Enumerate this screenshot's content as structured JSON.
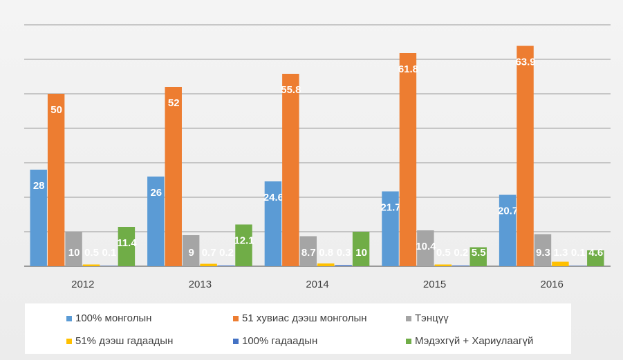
{
  "chart_data": {
    "type": "bar",
    "categories": [
      "2012",
      "2013",
      "2014",
      "2015",
      "2016"
    ],
    "series": [
      {
        "name": "100% монголын",
        "color": "#5b9bd5",
        "values": [
          28,
          26,
          24.6,
          21.7,
          20.7
        ]
      },
      {
        "name": "51 хувиас дээш монголын",
        "color": "#ed7d31",
        "values": [
          50,
          52,
          55.8,
          61.8,
          63.9
        ]
      },
      {
        "name": "Тэнцүү",
        "color": "#a5a5a5",
        "values": [
          10,
          9,
          8.7,
          10.4,
          9.3
        ]
      },
      {
        "name": "51% дээш гадаадын",
        "color": "#ffc000",
        "values": [
          0.5,
          0.7,
          0.8,
          0.5,
          1.3
        ]
      },
      {
        "name": "100% гадаадын",
        "color": "#4472c4",
        "values": [
          0.1,
          0.2,
          0.3,
          0.2,
          0.1
        ]
      },
      {
        "name": "Мэдэхгүй + Хариулаагүй",
        "color": "#70ad47",
        "values": [
          11.4,
          12.1,
          10,
          5.5,
          4.6
        ]
      }
    ],
    "ylim": [
      0,
      70
    ],
    "yticks": [
      0,
      10,
      20,
      30,
      40,
      50,
      60,
      70
    ],
    "grid": true,
    "legend": "bottom"
  }
}
